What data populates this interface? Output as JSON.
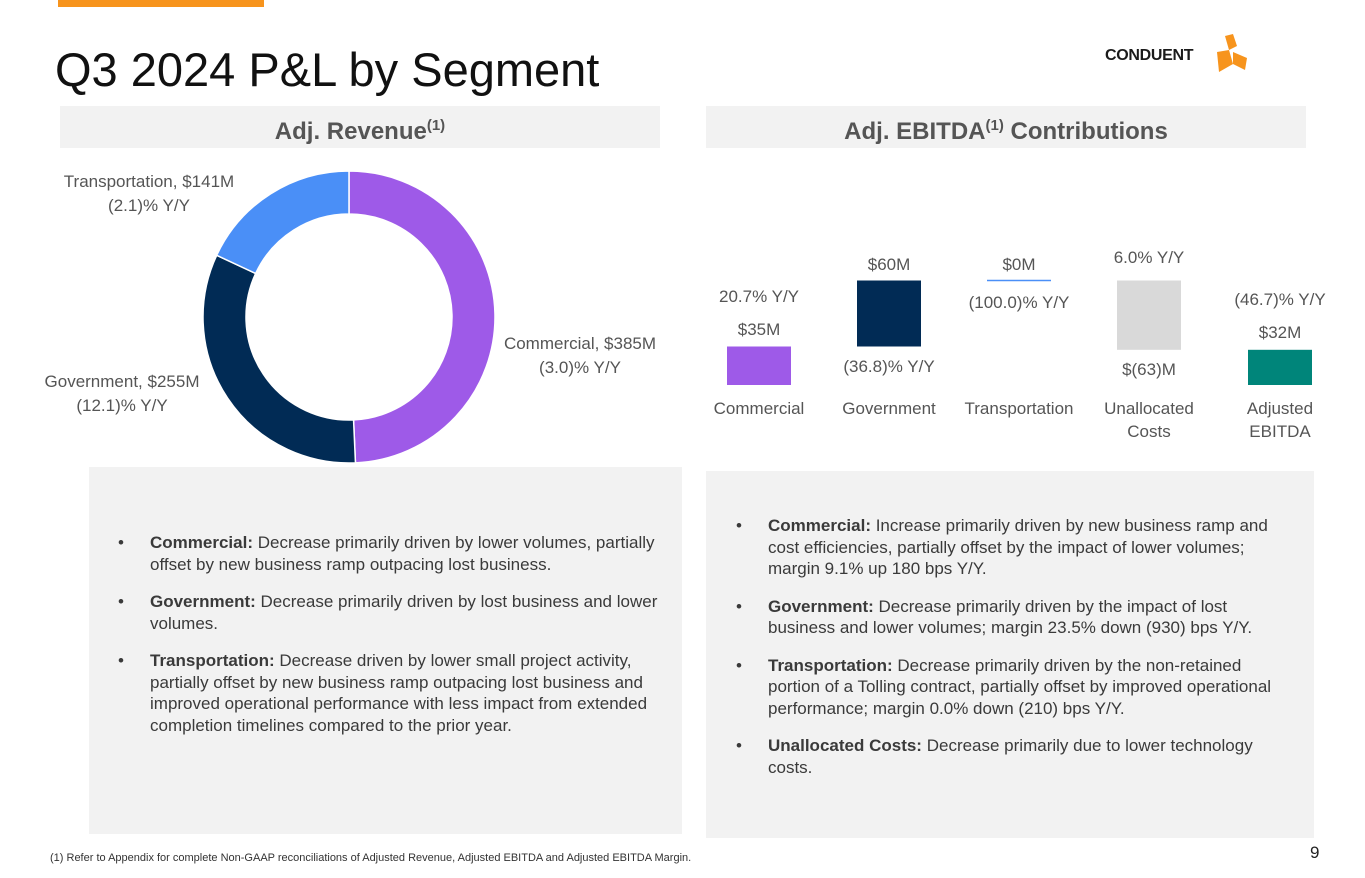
{
  "slide": {
    "title": "Q3 2024 P&L by Segment",
    "logo_text": "CONDUENT",
    "page_number": "9",
    "footnote": "(1) Refer to Appendix for complete Non-GAAP reconciliations of Adjusted Revenue, Adjusted EBITDA and Adjusted EBITDA Margin."
  },
  "revenue_panel": {
    "header": "Adj. Revenue",
    "header_sup": "(1)",
    "slices": [
      {
        "label": "Commercial, $385M",
        "change": "(3.0)% Y/Y",
        "value": 385,
        "color": "#9e5ae8"
      },
      {
        "label": "Government, $255M",
        "change": "(12.1)% Y/Y",
        "value": 255,
        "color": "#012b55"
      },
      {
        "label": "Transportation, $141M",
        "change": "(2.1)% Y/Y",
        "value": 141,
        "color": "#4a8ff7"
      }
    ]
  },
  "ebitda_panel": {
    "header_pre": "Adj. EBITDA",
    "header_sup": "(1)",
    "header_post": " Contributions",
    "bars": [
      {
        "category": "Commercial",
        "value_label": "$35M",
        "change": "20.7% Y/Y",
        "start": 0,
        "end": 35,
        "color": "#9e5ae8"
      },
      {
        "category": "Government",
        "value_label": "$60M",
        "change": "(36.8)% Y/Y",
        "start": 35,
        "end": 95,
        "color": "#012b55"
      },
      {
        "category": "Transportation",
        "value_label": "$0M",
        "change": "(100.0)% Y/Y",
        "start": 95,
        "end": 95,
        "color": "#4a8ff7"
      },
      {
        "category": "Unallocated Costs",
        "category_line1": "Unallocated",
        "category_line2": "Costs",
        "value_label": "$(63)M",
        "change": "6.0% Y/Y",
        "start": 95,
        "end": 32,
        "color": "#d9d9d9"
      },
      {
        "category": "Adjusted EBITDA",
        "category_line1": "Adjusted",
        "category_line2": "EBITDA",
        "value_label": "$32M",
        "change": "(46.7)% Y/Y",
        "start": 0,
        "end": 32,
        "color": "#00857a"
      }
    ]
  },
  "chart_data": [
    {
      "type": "pie",
      "title": "Adj. Revenue(1)",
      "categories": [
        "Commercial",
        "Government",
        "Transportation"
      ],
      "values": [
        385,
        255,
        141
      ],
      "changes_yoy": [
        "(3.0)%",
        "(12.1)%",
        "(2.1)%"
      ],
      "unit": "$M",
      "style": "donut"
    },
    {
      "type": "bar",
      "subtype": "waterfall",
      "title": "Adj. EBITDA(1) Contributions",
      "categories": [
        "Commercial",
        "Government",
        "Transportation",
        "Unallocated Costs",
        "Adjusted EBITDA"
      ],
      "values": [
        35,
        60,
        0,
        -63,
        32
      ],
      "changes_yoy": [
        "20.7%",
        "(36.8)%",
        "(100.0)%",
        "6.0%",
        "(46.7)%"
      ],
      "unit": "$M"
    }
  ],
  "revenue_notes": [
    {
      "label": "Commercial:",
      "text": " Decrease primarily driven by lower volumes, partially offset by new business ramp outpacing lost business."
    },
    {
      "label": "Government:",
      "text": " Decrease primarily driven by lost business and lower volumes."
    },
    {
      "label": "Transportation:",
      "text": " Decrease driven by lower small project activity, partially offset by new business ramp outpacing lost business and improved operational performance with less impact from extended completion timelines compared to the prior year."
    }
  ],
  "ebitda_notes": [
    {
      "label": "Commercial:",
      "text": " Increase primarily driven by new business ramp and cost efficiencies, partially offset by the impact of lower volumes; margin 9.1% up 180 bps Y/Y."
    },
    {
      "label": "Government:",
      "text": " Decrease primarily driven by the impact of lost business and lower volumes; margin 23.5% down (930) bps Y/Y."
    },
    {
      "label": "Transportation:",
      "text": " Decrease primarily driven by the non-retained portion of a Tolling contract, partially offset by improved operational performance; margin 0.0% down (210) bps Y/Y."
    },
    {
      "label": "Unallocated Costs:",
      "text": " Decrease primarily due to lower technology costs."
    }
  ]
}
